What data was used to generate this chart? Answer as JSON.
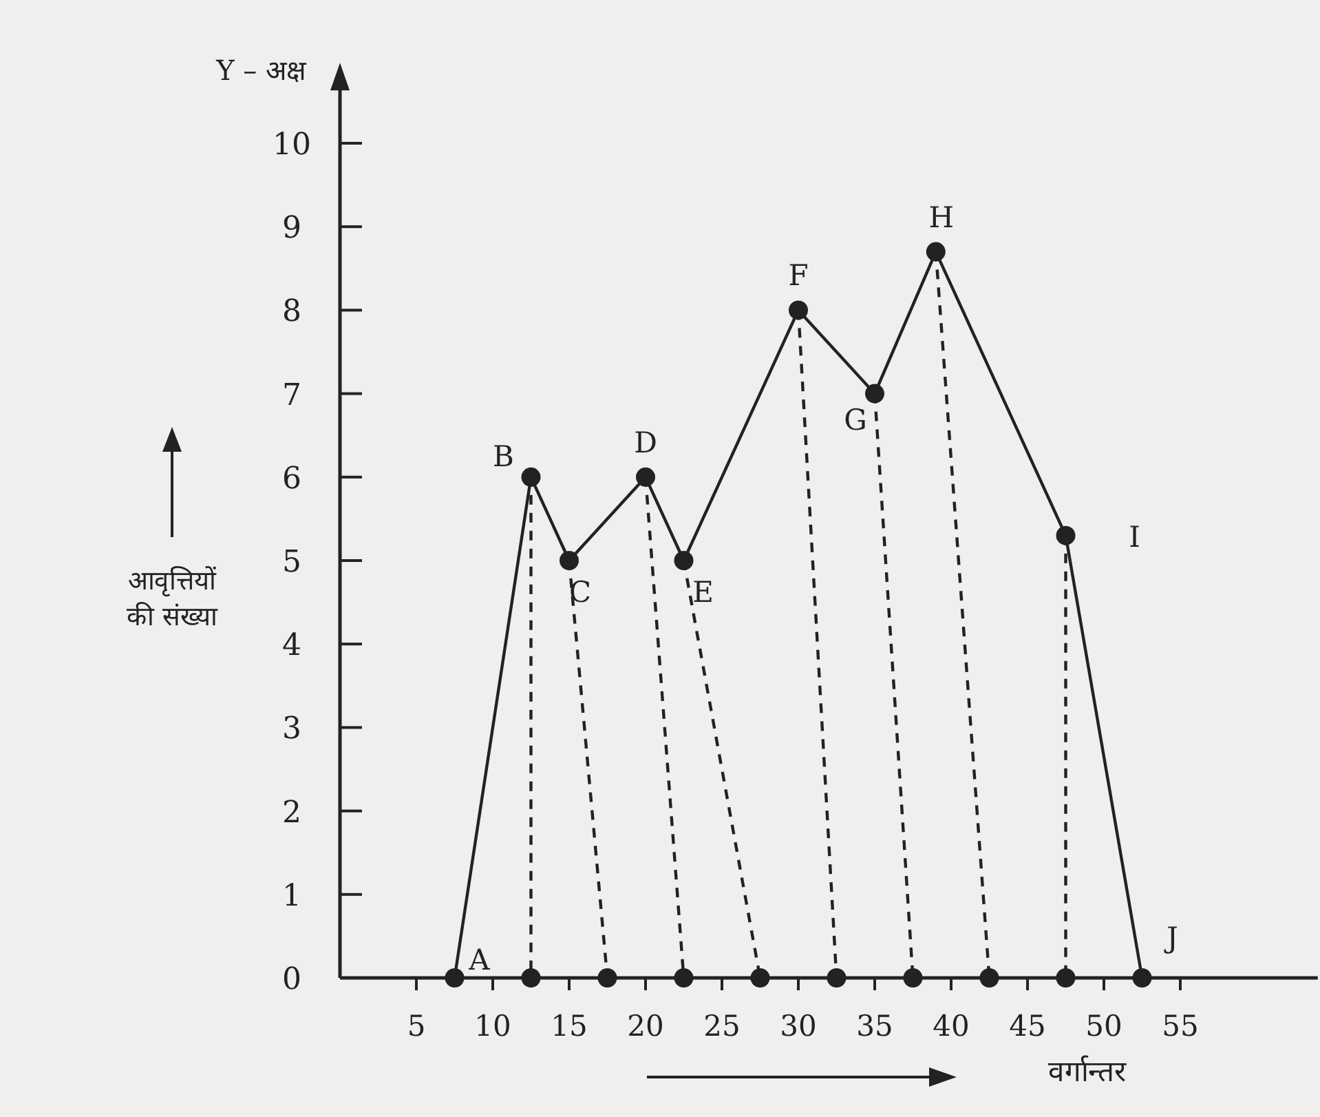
{
  "chart_data": {
    "type": "line",
    "xlabel": "वर्गान्तर",
    "ylabel": "आवृत्तियों की संख्या",
    "annotations": [
      "Y – अक्ष",
      {
        "text": "A",
        "x": 7.5,
        "y": 0
      },
      {
        "text": "B",
        "x": 12.5,
        "y": 6
      },
      {
        "text": "C",
        "x": 15,
        "y": 5
      },
      {
        "text": "D",
        "x": 20,
        "y": 6
      },
      {
        "text": "E",
        "x": 22.5,
        "y": 5
      },
      {
        "text": "F",
        "x": 30,
        "y": 8
      },
      {
        "text": "G",
        "x": 35,
        "y": 7
      },
      {
        "text": "H",
        "x": 39,
        "y": 8.7
      },
      {
        "text": "I",
        "x": 47.5,
        "y": 5.3
      },
      {
        "text": "J",
        "x": 52.5,
        "y": 0
      }
    ],
    "series": [
      {
        "color": "#222222",
        "x": [
          7.5,
          12.5,
          15,
          20,
          22.5,
          30,
          35,
          39,
          47.5,
          52.5
        ],
        "values": [
          0,
          6,
          5,
          6,
          5,
          8,
          7,
          8.7,
          5.3,
          0
        ]
      },
      {
        "color": "#222222",
        "line_style": "dashed",
        "marker": "none",
        "x": [
          12.5,
          12.5
        ],
        "values": [
          6,
          0
        ]
      },
      {
        "color": "#222222",
        "line_style": "dashed",
        "marker": "none",
        "x": [
          15,
          17.5
        ],
        "values": [
          5,
          0
        ]
      },
      {
        "color": "#222222",
        "line_style": "dashed",
        "marker": "none",
        "x": [
          20,
          22.5
        ],
        "values": [
          6,
          0
        ]
      },
      {
        "color": "#222222",
        "line_style": "dashed",
        "marker": "none",
        "x": [
          22.5,
          27.5
        ],
        "values": [
          5,
          0
        ]
      },
      {
        "color": "#222222",
        "line_style": "dashed",
        "marker": "none",
        "x": [
          30,
          32.5
        ],
        "values": [
          8,
          0
        ]
      },
      {
        "color": "#222222",
        "line_style": "dashed",
        "marker": "none",
        "x": [
          35,
          37.5
        ],
        "values": [
          7,
          0
        ]
      },
      {
        "color": "#222222",
        "line_style": "dashed",
        "marker": "none",
        "x": [
          39,
          42.5
        ],
        "values": [
          8.7,
          0
        ]
      },
      {
        "color": "#222222",
        "line_style": "dashed",
        "marker": "none",
        "x": [
          47.5,
          47.5
        ],
        "values": [
          5.3,
          0
        ]
      },
      {
        "type": "scatter",
        "color": "#222222",
        "x": [
          12.5,
          17.5,
          22.5,
          27.5,
          32.5,
          37.5,
          42.5,
          47.5
        ],
        "values": [
          0,
          0,
          0,
          0,
          0,
          0,
          0,
          0
        ]
      }
    ],
    "marker": "circle",
    "line_style": "solid",
    "grid": false,
    "xlim": [
      0,
      64
    ],
    "ylim": [
      0,
      10.7
    ],
    "xticks": [
      5,
      10,
      15,
      20,
      25,
      30,
      35,
      40,
      45,
      50,
      55
    ],
    "yticks": [
      0,
      1,
      2,
      3,
      4,
      5,
      6,
      7,
      8,
      9,
      10
    ]
  }
}
